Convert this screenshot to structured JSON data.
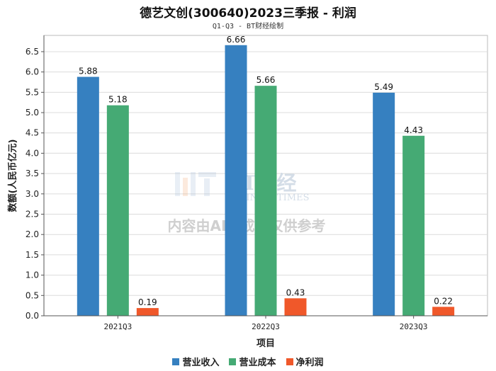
{
  "title": "德艺文创(300640)2023三季报 - 利润",
  "subtitle": "Q1-Q3 - BT财经绘制",
  "watermark": {
    "logo_text": "BT财经",
    "logo_subtext": "BUSINESSTIMES",
    "notice": "内容由AI生成，仅供参考"
  },
  "chart_data": {
    "type": "bar",
    "title": "德艺文创(300640)2023三季报 - 利润",
    "subtitle": "Q1-Q3 - BT财经绘制",
    "xlabel": "项目",
    "ylabel": "数额(人民币亿元)",
    "categories": [
      "2021Q3",
      "2022Q3",
      "2023Q3"
    ],
    "series": [
      {
        "name": "营业收入",
        "values": [
          5.88,
          6.66,
          5.49
        ],
        "color": "#3680c0"
      },
      {
        "name": "营业成本",
        "values": [
          5.18,
          5.66,
          4.43
        ],
        "color": "#45aa74"
      },
      {
        "name": "净利润",
        "values": [
          0.19,
          0.43,
          0.22
        ],
        "color": "#f0582a"
      }
    ],
    "ylim": [
      0,
      6.9
    ],
    "yticks": [
      "0.0",
      "0.5",
      "1.0",
      "1.5",
      "2.0",
      "2.5",
      "3.0",
      "3.5",
      "4.0",
      "4.5",
      "5.0",
      "5.5",
      "6.0",
      "6.5"
    ],
    "grid": true,
    "legend": "bottom"
  }
}
